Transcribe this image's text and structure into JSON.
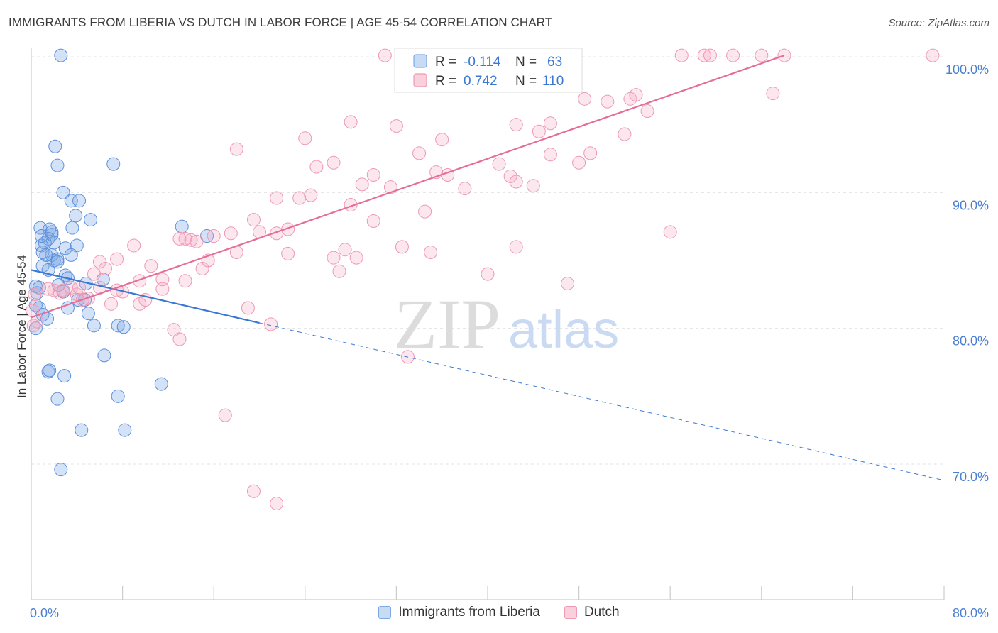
{
  "title": "IMMIGRANTS FROM LIBERIA VS DUTCH IN LABOR FORCE | AGE 45-54 CORRELATION CHART",
  "source": "Source: ZipAtlas.com",
  "watermark": {
    "zip": "ZIP",
    "atlas": "atlas"
  },
  "legend_box": {
    "rows": [
      {
        "r_label": "R = ",
        "r_value": "-0.114",
        "n_label": "N = ",
        "n_value": "63",
        "color": "#6d9fe3"
      },
      {
        "r_label": "R = ",
        "r_value": "0.742",
        "n_label": "N = ",
        "n_value": "110",
        "color": "#f08fae"
      }
    ]
  },
  "bottom_legend": [
    {
      "label": "Immigrants from Liberia",
      "fill": "#c7dbf5",
      "stroke": "#7ea9e3"
    },
    {
      "label": "Dutch",
      "fill": "#f9d0dc",
      "stroke": "#ee9ab4"
    }
  ],
  "colors": {
    "blue_fill": "rgba(120,165,230,0.32)",
    "blue_stroke": "#5b8fdc",
    "blue_line": "#3a78d4",
    "pink_fill": "rgba(246,170,195,0.28)",
    "pink_stroke": "#ee98b2",
    "pink_line": "#e46e97",
    "axis_label": "#4a7fd0",
    "grid": "#e3e3e3"
  },
  "chart_data": {
    "type": "scatter",
    "xlabel": "",
    "ylabel": "In Labor Force | Age 45-54",
    "xlim": [
      0,
      80
    ],
    "ylim": [
      62,
      102
    ],
    "x_tick_labels": [
      {
        "value": 0,
        "label": "0.0%"
      },
      {
        "value": 80,
        "label": "80.0%"
      }
    ],
    "y_tick_labels": [
      {
        "value": 70,
        "label": "70.0%"
      },
      {
        "value": 80,
        "label": "80.0%"
      },
      {
        "value": 90,
        "label": "90.0%"
      },
      {
        "value": 100,
        "label": "100.0%"
      }
    ],
    "grid": true,
    "series": [
      {
        "name": "Immigrants from Liberia",
        "regression": {
          "x0": 0,
          "y0": 84.3,
          "x1": 20,
          "y1": 80.4,
          "dash_to_x": 80,
          "dash_to_y": 68.8
        },
        "points": [
          [
            2.6,
            100.1
          ],
          [
            2.1,
            93.4
          ],
          [
            2.3,
            92.0
          ],
          [
            7.2,
            92.1
          ],
          [
            2.8,
            90.0
          ],
          [
            3.5,
            89.4
          ],
          [
            4.2,
            89.4
          ],
          [
            3.9,
            88.3
          ],
          [
            5.2,
            88.0
          ],
          [
            0.8,
            87.4
          ],
          [
            1.6,
            87.3
          ],
          [
            1.8,
            86.9
          ],
          [
            3.6,
            87.4
          ],
          [
            1.5,
            86.6
          ],
          [
            2.0,
            86.3
          ],
          [
            1.2,
            86.3
          ],
          [
            0.9,
            86.1
          ],
          [
            3.0,
            85.9
          ],
          [
            4.0,
            86.1
          ],
          [
            1.0,
            85.6
          ],
          [
            1.8,
            85.4
          ],
          [
            3.5,
            85.4
          ],
          [
            2.0,
            85.0
          ],
          [
            2.3,
            85.1
          ],
          [
            1.0,
            84.6
          ],
          [
            1.5,
            84.3
          ],
          [
            3.0,
            83.9
          ],
          [
            3.2,
            83.7
          ],
          [
            6.3,
            83.6
          ],
          [
            0.4,
            83.1
          ],
          [
            0.7,
            83.0
          ],
          [
            2.4,
            83.2
          ],
          [
            4.8,
            83.3
          ],
          [
            0.5,
            82.6
          ],
          [
            2.8,
            82.7
          ],
          [
            4.1,
            82.1
          ],
          [
            4.7,
            82.1
          ],
          [
            0.4,
            81.7
          ],
          [
            0.7,
            81.5
          ],
          [
            3.2,
            81.5
          ],
          [
            1.0,
            81.0
          ],
          [
            5.0,
            81.1
          ],
          [
            1.4,
            80.7
          ],
          [
            5.5,
            80.2
          ],
          [
            7.6,
            80.2
          ],
          [
            8.1,
            80.1
          ],
          [
            0.4,
            80.0
          ],
          [
            6.4,
            78.0
          ],
          [
            1.5,
            76.8
          ],
          [
            1.6,
            76.9
          ],
          [
            2.9,
            76.5
          ],
          [
            11.4,
            75.9
          ],
          [
            7.6,
            75.0
          ],
          [
            2.3,
            74.8
          ],
          [
            4.4,
            72.5
          ],
          [
            8.2,
            72.5
          ],
          [
            2.6,
            69.6
          ],
          [
            13.2,
            87.5
          ],
          [
            15.4,
            86.8
          ],
          [
            0.9,
            86.8
          ],
          [
            1.8,
            87.1
          ],
          [
            2.3,
            84.9
          ],
          [
            1.3,
            85.4
          ]
        ]
      },
      {
        "name": "Dutch",
        "regression": {
          "x0": 0,
          "y0": 80.8,
          "x1": 66,
          "y1": 100.1
        },
        "points": [
          [
            31,
            100.1
          ],
          [
            37,
            100.1
          ],
          [
            38.5,
            99.8
          ],
          [
            39.5,
            100.1
          ],
          [
            57,
            100.1
          ],
          [
            59,
            100.1
          ],
          [
            59.5,
            100.1
          ],
          [
            61.5,
            100.1
          ],
          [
            64,
            100.1
          ],
          [
            66,
            100.1
          ],
          [
            79,
            100.1
          ],
          [
            47,
            99.2
          ],
          [
            48.5,
            96.9
          ],
          [
            50.5,
            96.7
          ],
          [
            52.5,
            96.9
          ],
          [
            53,
            97.2
          ],
          [
            54,
            96.0
          ],
          [
            65,
            97.3
          ],
          [
            28,
            95.2
          ],
          [
            32,
            94.9
          ],
          [
            42.5,
            95.0
          ],
          [
            44.5,
            94.5
          ],
          [
            45.5,
            95.1
          ],
          [
            52,
            94.3
          ],
          [
            24,
            94.0
          ],
          [
            36,
            93.9
          ],
          [
            18,
            93.2
          ],
          [
            34,
            92.9
          ],
          [
            45.5,
            92.8
          ],
          [
            49,
            92.9
          ],
          [
            25,
            91.9
          ],
          [
            26.5,
            92.2
          ],
          [
            41,
            92.1
          ],
          [
            48,
            92.2
          ],
          [
            30,
            91.3
          ],
          [
            35.5,
            91.5
          ],
          [
            42,
            91.2
          ],
          [
            29,
            90.6
          ],
          [
            31.5,
            90.4
          ],
          [
            38,
            90.3
          ],
          [
            42.5,
            90.8
          ],
          [
            21.5,
            89.6
          ],
          [
            23.5,
            89.6
          ],
          [
            24.5,
            89.8
          ],
          [
            34.5,
            88.6
          ],
          [
            28,
            89.1
          ],
          [
            19.5,
            88.0
          ],
          [
            30,
            87.9
          ],
          [
            14,
            86.5
          ],
          [
            16,
            86.8
          ],
          [
            17.5,
            87.0
          ],
          [
            21.5,
            87.0
          ],
          [
            22.5,
            87.3
          ],
          [
            20,
            87.1
          ],
          [
            56,
            87.1
          ],
          [
            13.5,
            86.6
          ],
          [
            14.5,
            86.4
          ],
          [
            9,
            86.1
          ],
          [
            27.5,
            85.8
          ],
          [
            32.5,
            86.0
          ],
          [
            35,
            85.6
          ],
          [
            42.5,
            86.0
          ],
          [
            18,
            85.6
          ],
          [
            26.5,
            85.2
          ],
          [
            28.5,
            85.2
          ],
          [
            15.5,
            85.0
          ],
          [
            6,
            84.9
          ],
          [
            7.5,
            85.1
          ],
          [
            10.5,
            84.6
          ],
          [
            6.5,
            84.4
          ],
          [
            5.5,
            84.0
          ],
          [
            11.5,
            83.6
          ],
          [
            13.5,
            83.5
          ],
          [
            9.5,
            83.5
          ],
          [
            15,
            84.4
          ],
          [
            40,
            84.0
          ],
          [
            47,
            83.3
          ],
          [
            3.5,
            83.0
          ],
          [
            2.5,
            82.6
          ],
          [
            4,
            82.5
          ],
          [
            5,
            82.2
          ],
          [
            6,
            83.0
          ],
          [
            7.5,
            82.8
          ],
          [
            11.5,
            82.9
          ],
          [
            2.0,
            82.8
          ],
          [
            4.5,
            82.1
          ],
          [
            7,
            81.8
          ],
          [
            9.5,
            81.8
          ],
          [
            10,
            82.1
          ],
          [
            0.3,
            82.5
          ],
          [
            19,
            81.5
          ],
          [
            0.5,
            80.5
          ],
          [
            21,
            80.3
          ],
          [
            12.5,
            79.9
          ],
          [
            13,
            79.2
          ],
          [
            33,
            77.9
          ],
          [
            17,
            73.6
          ],
          [
            19.5,
            68.0
          ],
          [
            21.5,
            67.1
          ],
          [
            13,
            86.6
          ],
          [
            2.8,
            82.8
          ],
          [
            1.5,
            82.9
          ],
          [
            22.5,
            85.5
          ],
          [
            0.1,
            81.3
          ],
          [
            0.2,
            80.2
          ],
          [
            4.2,
            83.0
          ],
          [
            8,
            82.7
          ],
          [
            27,
            84.2
          ],
          [
            36.5,
            91.3
          ],
          [
            44,
            90.5
          ]
        ]
      }
    ]
  }
}
